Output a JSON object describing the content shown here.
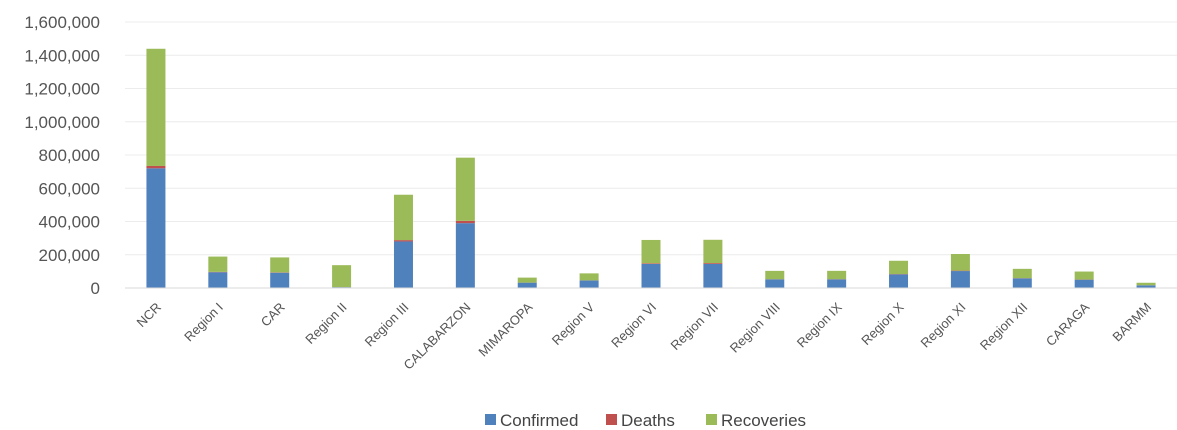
{
  "chart_data": {
    "type": "bar",
    "stacked": true,
    "categories": [
      "NCR",
      "Region I",
      "CAR",
      "Region II",
      "Region III",
      "CALABARZON",
      "MIMAROPA",
      "Region V",
      "Region VI",
      "Region VII",
      "Region VIII",
      "Region IX",
      "Region X",
      "Region XI",
      "Region XII",
      "CARAGA",
      "BARMM"
    ],
    "series": [
      {
        "name": "Confirmed",
        "color": "#4f81bd",
        "values": [
          720000,
          95000,
          92000,
          5000,
          280000,
          390000,
          32000,
          45000,
          145000,
          145000,
          52000,
          52000,
          82000,
          102000,
          58000,
          50000,
          16000
        ]
      },
      {
        "name": "Deaths",
        "color": "#c0504d",
        "values": [
          14000,
          2000,
          2000,
          300,
          8000,
          14000,
          500,
          1000,
          4000,
          5000,
          1000,
          1200,
          1800,
          2500,
          1200,
          1000,
          500
        ]
      },
      {
        "name": "Recoveries",
        "color": "#9bbb59",
        "values": [
          705000,
          92000,
          90000,
          132000,
          273000,
          380000,
          30000,
          42000,
          140000,
          140000,
          50000,
          50000,
          80000,
          100000,
          56000,
          48000,
          15000
        ]
      }
    ],
    "y_ticks": [
      "0",
      "200,000",
      "400,000",
      "600,000",
      "800,000",
      "1,000,000",
      "1,200,000",
      "1,400,000",
      "1,600,000"
    ],
    "ylim": [
      0,
      1600000
    ],
    "grid": true,
    "legend_position": "bottom"
  }
}
